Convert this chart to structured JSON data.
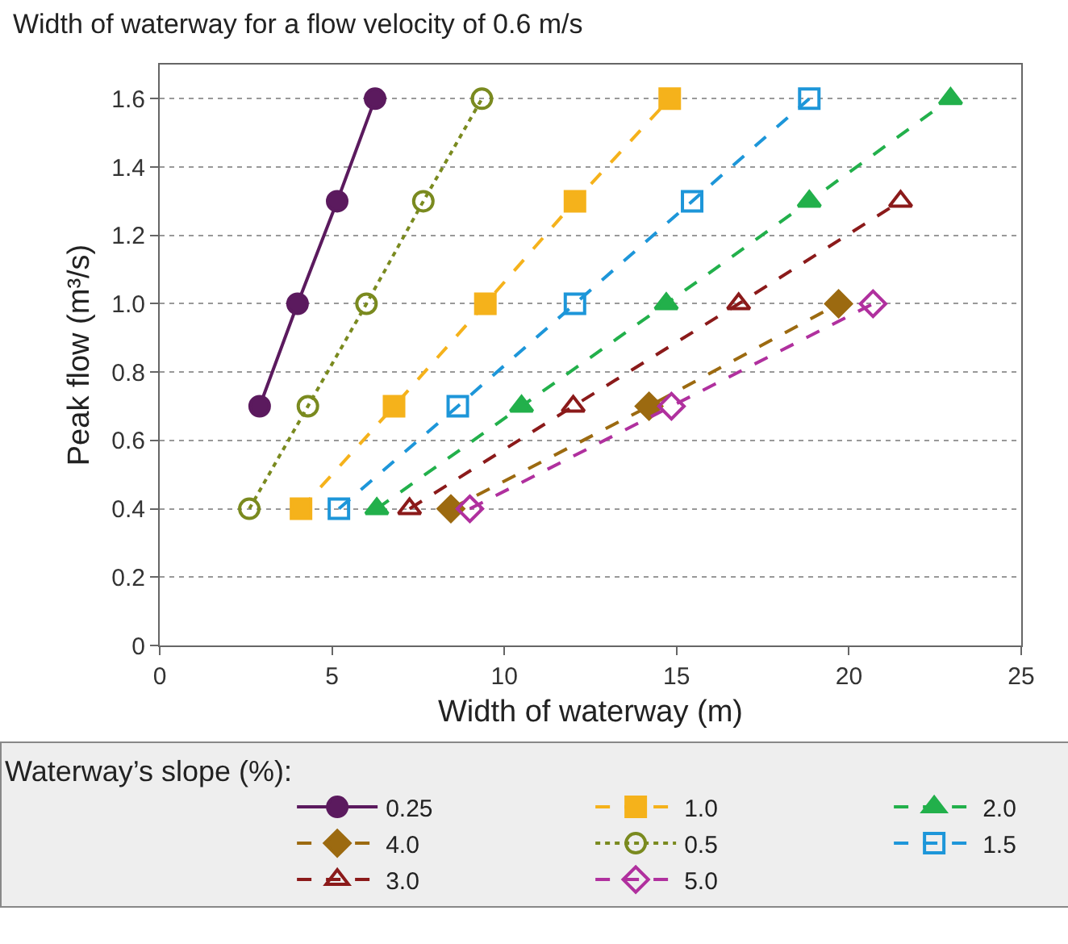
{
  "chart_data": {
    "type": "line",
    "title": "Width of waterway for a flow velocity of 0.6 m/s",
    "xlabel": "Width of waterway (m)",
    "ylabel": "Peak flow (m³/s)",
    "legend_title": "Waterway’s slope (%):",
    "xlim": [
      0,
      25
    ],
    "xticks": [
      0,
      5,
      10,
      15,
      20,
      25
    ],
    "ylim": [
      0,
      1.7
    ],
    "yticks": [
      0,
      0.2,
      0.4,
      0.6,
      0.8,
      {
        "value": 1,
        "label": "1.0"
      },
      1.2,
      1.4,
      1.6
    ],
    "grid": "y",
    "legend": "bottom",
    "series": [
      {
        "name": "0.25",
        "color": "#5b1a5e",
        "marker": "circle",
        "line_style": "solid",
        "x": [
          2.9,
          4.0,
          5.15,
          6.25
        ],
        "values": [
          0.7,
          1.0,
          1.3,
          1.6
        ]
      },
      {
        "name": "1.0",
        "color": "#f5b21b",
        "marker": "square",
        "line_style": "dashed",
        "x": [
          4.1,
          6.8,
          9.45,
          12.05,
          14.8
        ],
        "values": [
          0.4,
          0.7,
          1.0,
          1.3,
          1.6
        ]
      },
      {
        "name": "2.0",
        "color": "#22b04b",
        "marker": "triangle",
        "line_style": "dashed",
        "x": [
          6.3,
          10.5,
          14.7,
          18.85,
          22.95
        ],
        "values": [
          0.4,
          0.7,
          1.0,
          1.3,
          1.6
        ]
      },
      {
        "name": "4.0",
        "color": "#9c6a10",
        "marker": "diamond",
        "line_style": "dashed",
        "x": [
          8.45,
          14.2,
          19.7
        ],
        "values": [
          0.4,
          0.7,
          1.0
        ]
      },
      {
        "name": "0.5",
        "color": "#7a8a1f",
        "marker": "circle-open",
        "line_style": "dotted",
        "x": [
          2.6,
          4.3,
          6.0,
          7.65,
          9.35
        ],
        "values": [
          0.4,
          0.7,
          1.0,
          1.3,
          1.6
        ]
      },
      {
        "name": "1.5",
        "color": "#1d96d9",
        "marker": "square-open",
        "line_style": "dashed",
        "x": [
          5.2,
          8.65,
          12.05,
          15.45,
          18.85
        ],
        "values": [
          0.4,
          0.7,
          1.0,
          1.3,
          1.6
        ]
      },
      {
        "name": "3.0",
        "color": "#8b1a1a",
        "marker": "triangle-open",
        "line_style": "dashed",
        "x": [
          7.25,
          12.0,
          16.8,
          21.5
        ],
        "values": [
          0.4,
          0.7,
          1.0,
          1.3
        ]
      },
      {
        "name": "5.0",
        "color": "#b0309e",
        "marker": "diamond-open",
        "line_style": "dashed",
        "x": [
          9.0,
          14.85,
          20.7
        ],
        "values": [
          0.4,
          0.7,
          1.0
        ]
      }
    ]
  }
}
